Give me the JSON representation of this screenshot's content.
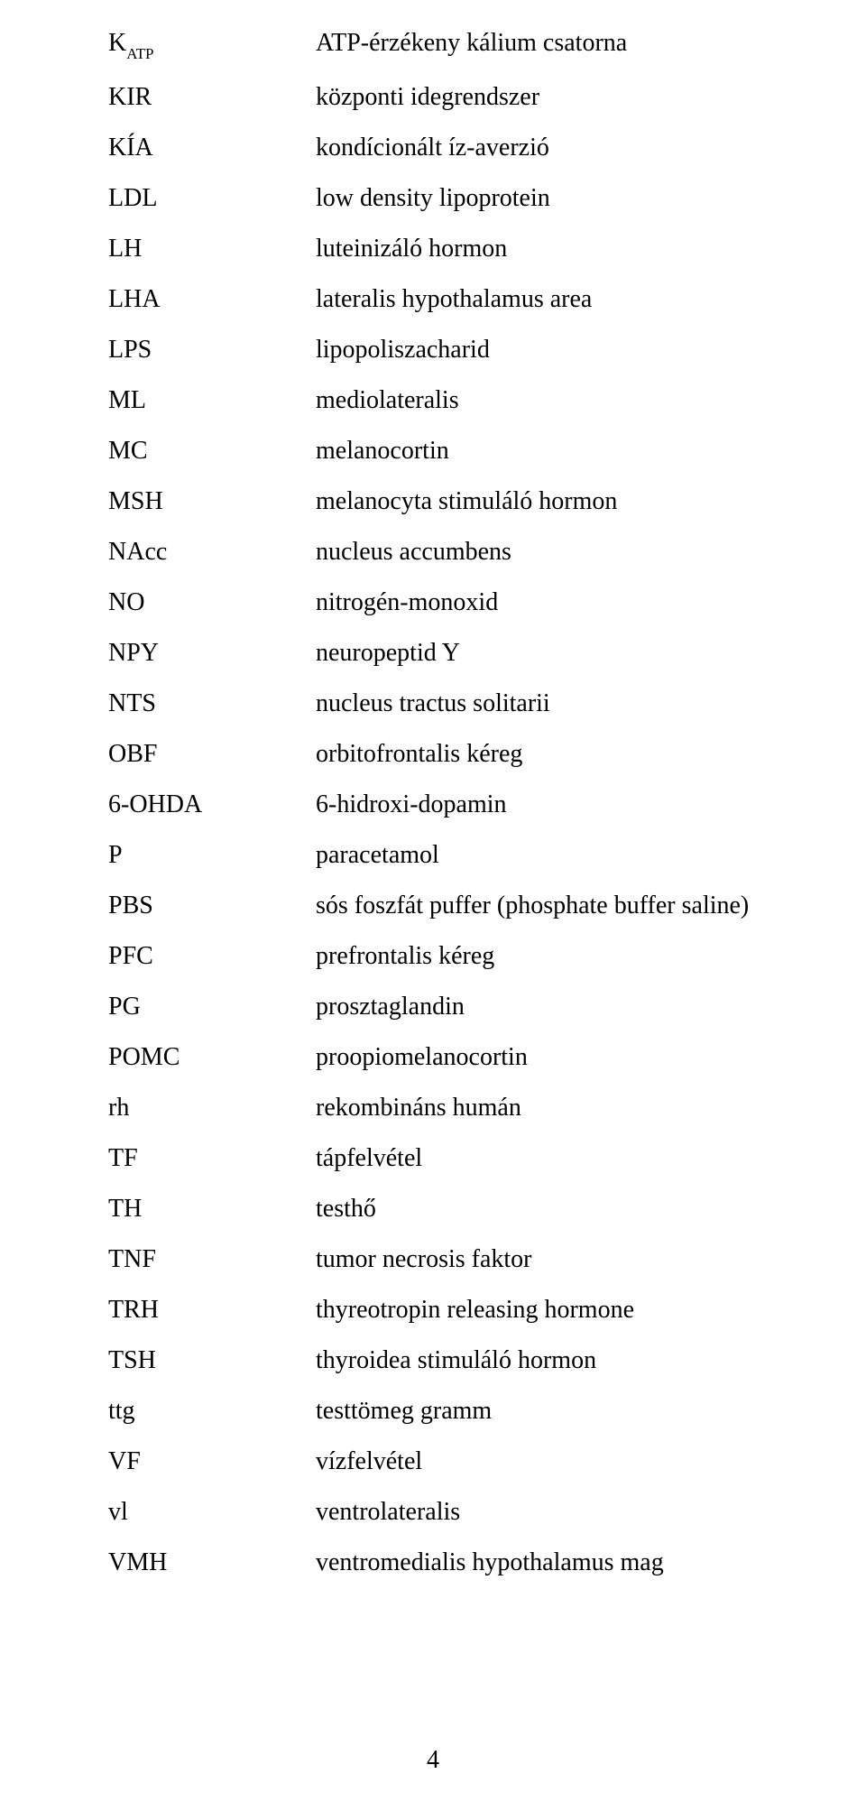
{
  "page_number": "4",
  "text_color": "#000000",
  "background_color": "#ffffff",
  "font_family": "Times New Roman",
  "font_size_pt": 21,
  "entries": {
    "katp": {
      "abbr_pre": "K",
      "abbr_sub": "ATP",
      "def": "ATP-érzékeny kálium csatorna"
    },
    "kir": {
      "abbr": "KIR",
      "def": "központi idegrendszer"
    },
    "kia": {
      "abbr": "KÍA",
      "def": "kondícionált íz-averzió"
    },
    "ldl": {
      "abbr": "LDL",
      "def": "low density lipoprotein"
    },
    "lh": {
      "abbr": "LH",
      "def": "luteinizáló hormon"
    },
    "lha": {
      "abbr": "LHA",
      "def": "lateralis hypothalamus area"
    },
    "lps": {
      "abbr": "LPS",
      "def": "lipopoliszacharid"
    },
    "ml": {
      "abbr": "ML",
      "def": "mediolateralis"
    },
    "mc": {
      "abbr": "MC",
      "def": "melanocortin"
    },
    "msh": {
      "abbr": "MSH",
      "def": "melanocyta stimuláló hormon"
    },
    "nacc": {
      "abbr": "NAcc",
      "def": "nucleus accumbens"
    },
    "no": {
      "abbr": "NO",
      "def": "nitrogén-monoxid"
    },
    "npy": {
      "abbr": "NPY",
      "def": "neuropeptid Y"
    },
    "nts": {
      "abbr": "NTS",
      "def": "nucleus tractus solitarii"
    },
    "obf": {
      "abbr": "OBF",
      "def": "orbitofrontalis kéreg"
    },
    "ohda": {
      "abbr": "6-OHDA",
      "def": "6-hidroxi-dopamin"
    },
    "p": {
      "abbr": "P",
      "def": "paracetamol"
    },
    "pbs": {
      "abbr": "PBS",
      "def": "sós foszfát puffer (phosphate buffer saline)"
    },
    "pfc": {
      "abbr": "PFC",
      "def": "prefrontalis kéreg"
    },
    "pg": {
      "abbr": "PG",
      "def": "prosztaglandin"
    },
    "pomc": {
      "abbr": "POMC",
      "def": "proopiomelanocortin"
    },
    "rh": {
      "abbr": "rh",
      "def": "rekombináns humán"
    },
    "tf": {
      "abbr": "TF",
      "def": "tápfelvétel"
    },
    "th": {
      "abbr": "TH",
      "def": "testhő"
    },
    "tnf": {
      "abbr": "TNF",
      "def": "tumor necrosis faktor"
    },
    "trh": {
      "abbr": "TRH",
      "def": "thyreotropin releasing hormone"
    },
    "tsh": {
      "abbr": "TSH",
      "def": "thyroidea stimuláló hormon"
    },
    "ttg": {
      "abbr": "ttg",
      "def": "testtömeg gramm"
    },
    "vf": {
      "abbr": "VF",
      "def": "vízfelvétel"
    },
    "vl": {
      "abbr": "vl",
      "def": "ventrolateralis"
    },
    "vmh": {
      "abbr": "VMH",
      "def": "ventromedialis hypothalamus mag"
    }
  }
}
